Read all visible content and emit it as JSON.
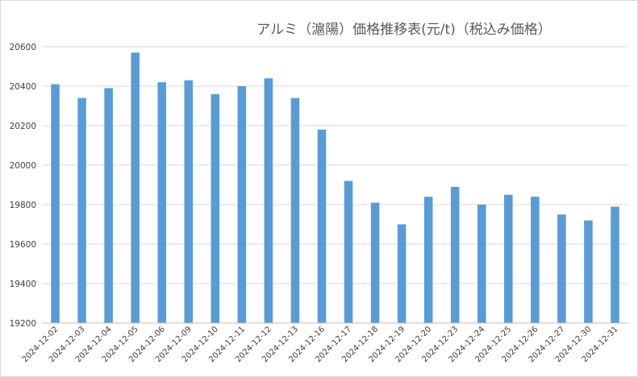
{
  "chart_data": {
    "type": "bar",
    "title": "アルミ（滬陽）価格推移表(元/t)（税込み価格）",
    "xlabel": "",
    "ylabel": "",
    "ylim": [
      19200,
      20600
    ],
    "yticks": [
      19200,
      19400,
      19600,
      19800,
      20000,
      20200,
      20400,
      20600
    ],
    "grid": true,
    "legend": "none",
    "bar_color": "#5b9bd5",
    "categories": [
      "2024-12-02",
      "2024-12-03",
      "2024-12-04",
      "2024-12-05",
      "2024-12-06",
      "2024-12-09",
      "2024-12-10",
      "2024-12-11",
      "2024-12-12",
      "2024-12-13",
      "2024-12-16",
      "2024-12-17",
      "2024-12-18",
      "2024-12-19",
      "2024-12-20",
      "2024-12-23",
      "2024-12-24",
      "2024-12-25",
      "2024-12-26",
      "2024-12-27",
      "2024-12-30",
      "2024-12-31"
    ],
    "values": [
      20410,
      20340,
      20390,
      20570,
      20420,
      20430,
      20360,
      20400,
      20440,
      20340,
      20180,
      19920,
      19810,
      19700,
      19840,
      19890,
      19800,
      19850,
      19840,
      19750,
      19720,
      19790
    ]
  }
}
